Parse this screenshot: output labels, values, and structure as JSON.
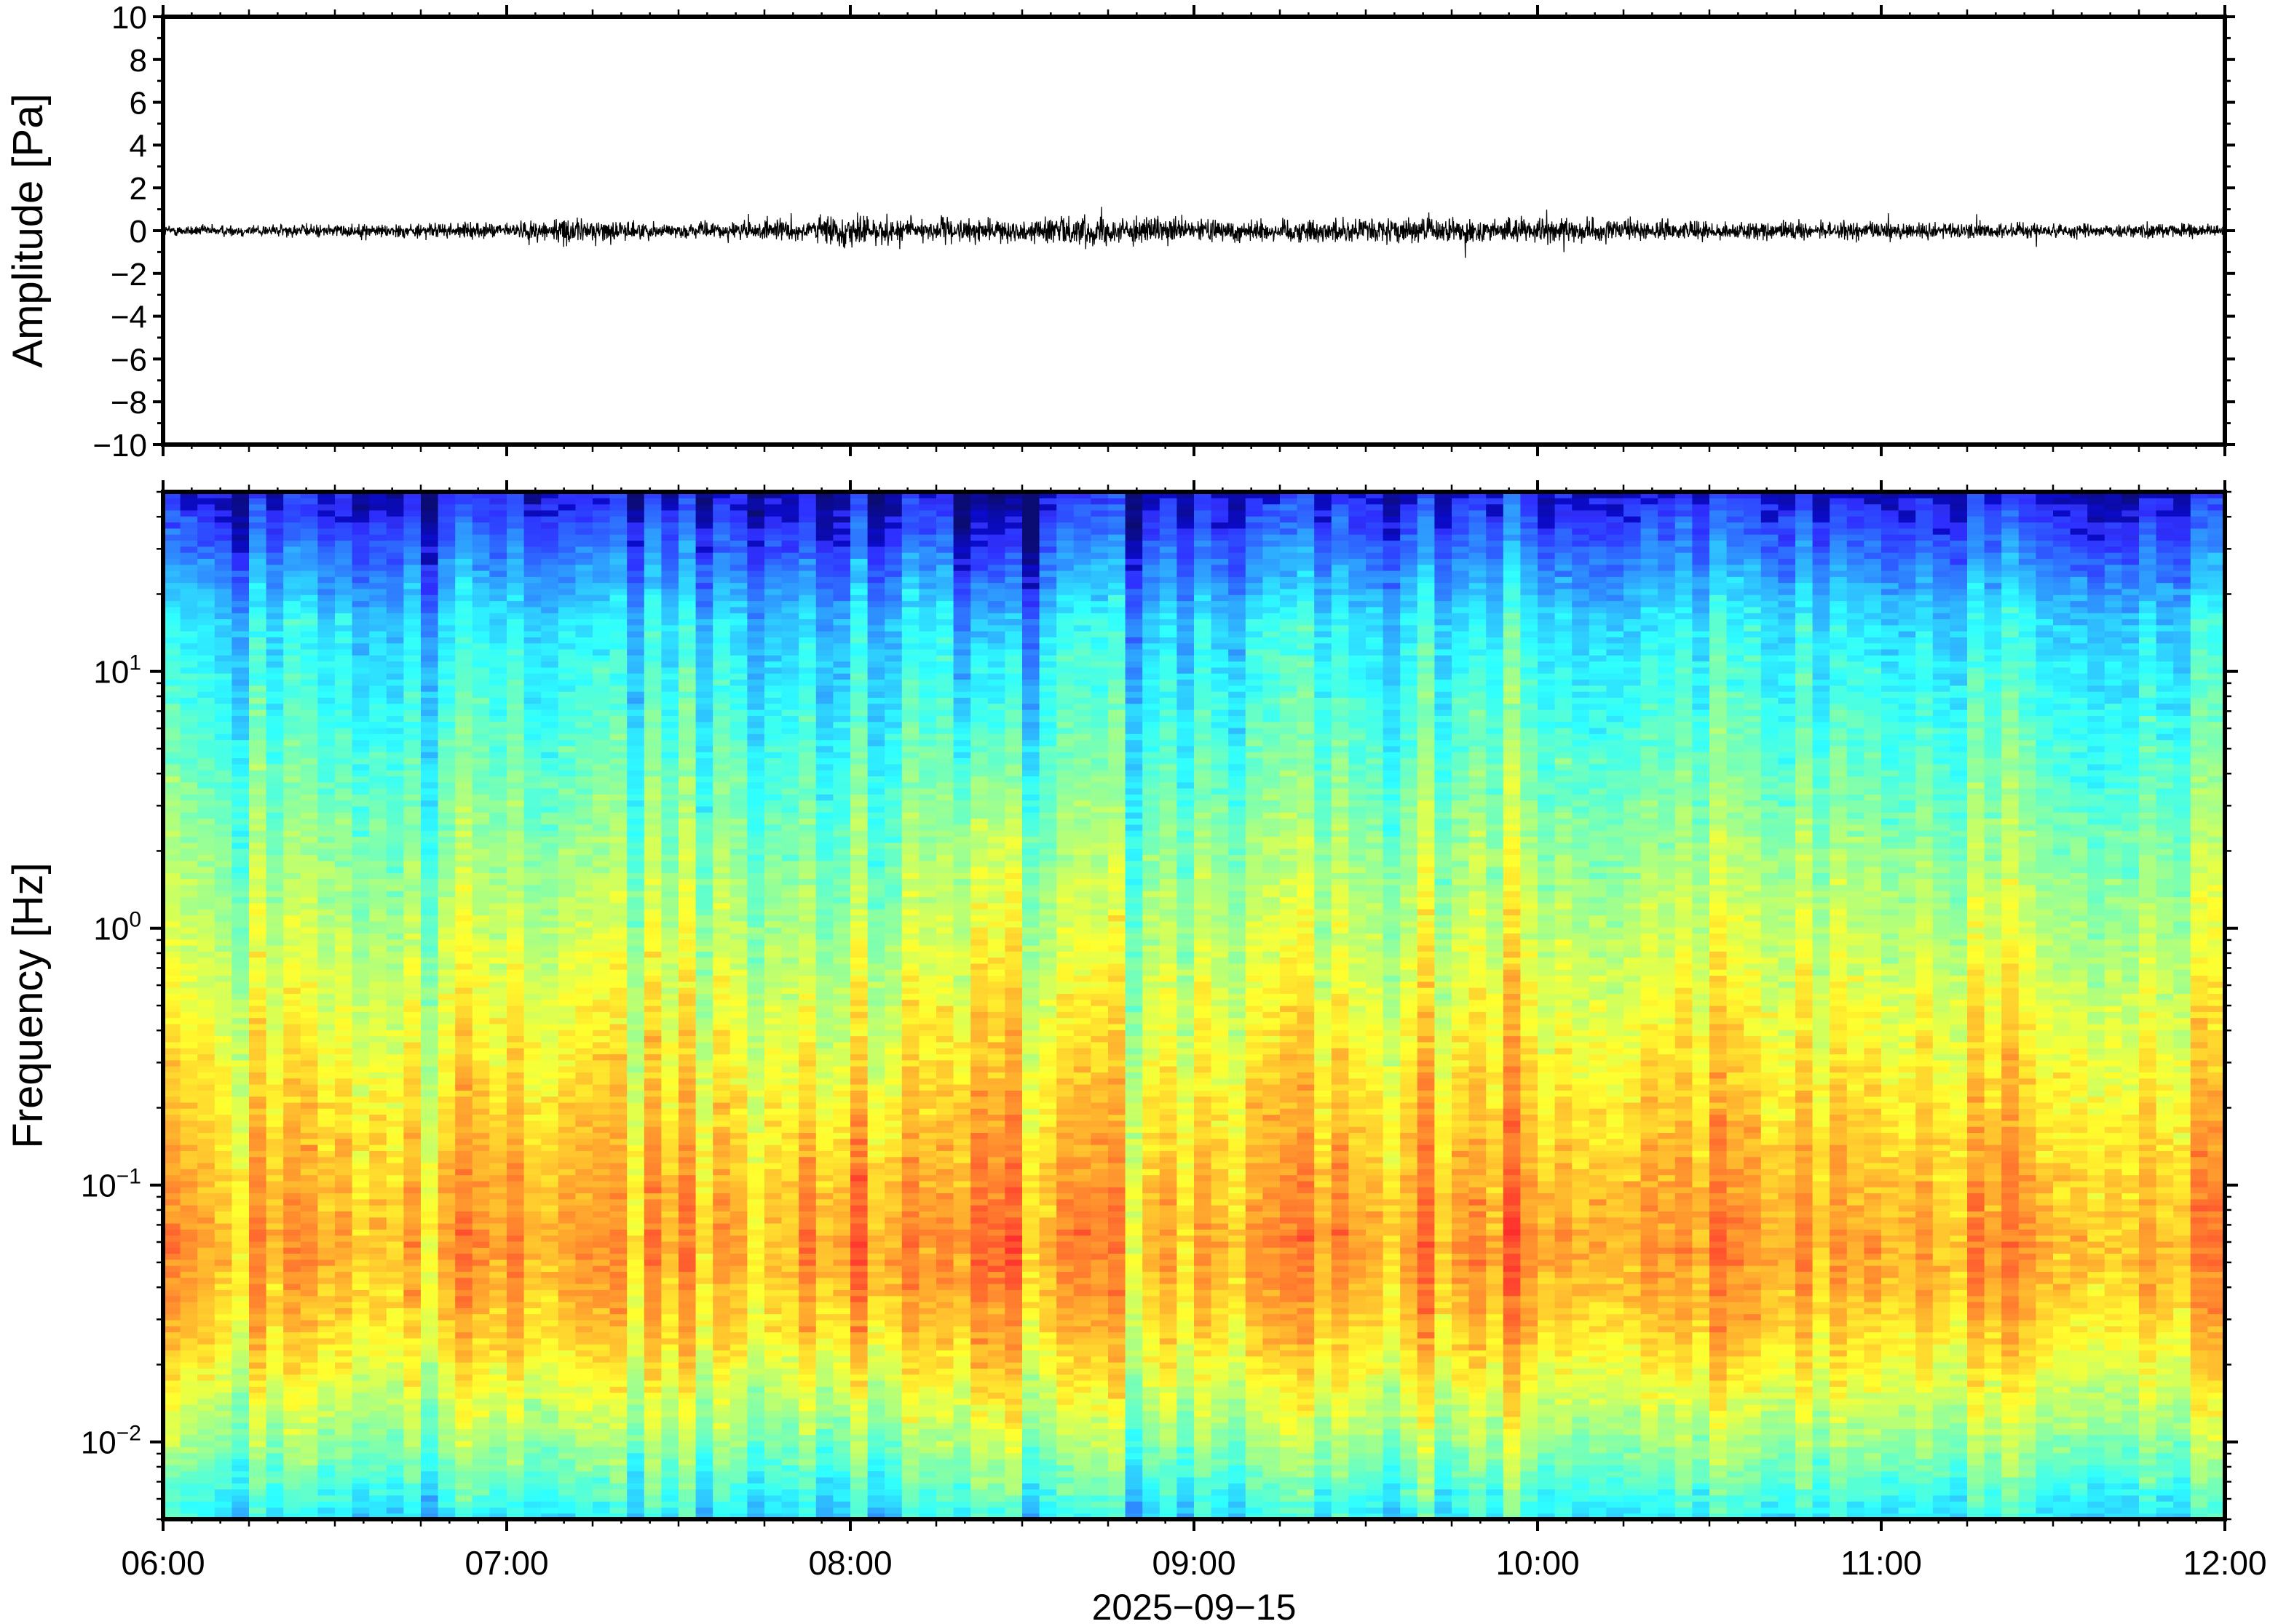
{
  "chart_data": [
    {
      "type": "line",
      "ylabel": "Amplitude [Pa]",
      "ylim": [
        -10,
        10
      ],
      "yticks": [
        "10",
        "8",
        "6",
        "4",
        "2",
        "0",
        "−2",
        "−4",
        "−6",
        "−8",
        "−10"
      ],
      "yticks_values": [
        10,
        8,
        6,
        4,
        2,
        0,
        -2,
        -4,
        -6,
        -8,
        -10
      ],
      "xlim_hours": [
        6,
        12
      ],
      "grid": false,
      "series": [
        {
          "color": "#000000",
          "x_hours": [
            6.0,
            6.5,
            7.0,
            7.15,
            7.5,
            7.9,
            7.97,
            8.0,
            8.05,
            8.5,
            8.6,
            9.0,
            9.5,
            10.0,
            10.5,
            11.0,
            11.5,
            12.0
          ],
          "envelope_pa": [
            0.5,
            0.6,
            0.7,
            1.2,
            0.6,
            1.1,
            1.5,
            1.6,
            1.3,
            0.9,
            1.4,
            1.0,
            1.1,
            1.1,
            0.8,
            0.8,
            0.7,
            0.6
          ]
        }
      ]
    },
    {
      "type": "heatmap",
      "ylabel": "Frequency [Hz]",
      "xlabel": "2025−09−15",
      "y_scale": "log",
      "ylim": [
        0.005,
        50
      ],
      "yticks": [
        {
          "base": "10",
          "exp": "−2",
          "value": 0.01
        },
        {
          "base": "10",
          "exp": "−1",
          "value": 0.1
        },
        {
          "base": "10",
          "exp": "0",
          "value": 1
        },
        {
          "base": "10",
          "exp": "1",
          "value": 10
        }
      ],
      "xticks": [
        "06:00",
        "07:00",
        "08:00",
        "09:00",
        "10:00",
        "11:00",
        "12:00"
      ],
      "colormap": "jet",
      "colormap_colors": [
        "#00007f",
        "#0000ff",
        "#007fff",
        "#00ffff",
        "#7fff7f",
        "#ffff00",
        "#ff7f00",
        "#ff0000"
      ],
      "peak_frequency_hz": 0.06,
      "note_columns": "power highest near 0.05-0.1 Hz, decreasing toward 50 Hz"
    }
  ]
}
